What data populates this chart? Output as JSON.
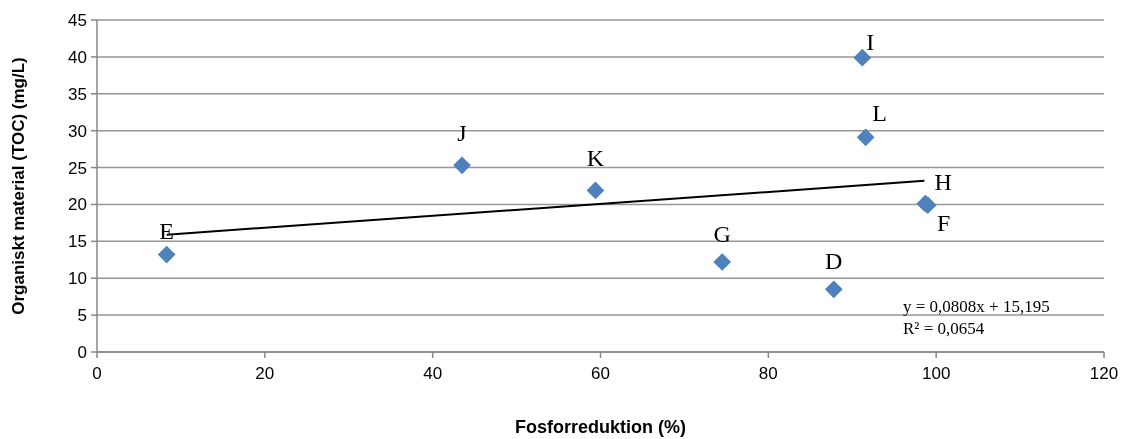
{
  "chart_data": {
    "type": "scatter",
    "xlabel": "Fosforreduktion (%)",
    "ylabel": "Organiskt material (TOC) (mg/L)",
    "xlim": [
      0,
      120
    ],
    "xticks": [
      0,
      20,
      40,
      60,
      80,
      100,
      120
    ],
    "ylim": [
      0,
      45
    ],
    "yticks": [
      0,
      5,
      10,
      15,
      20,
      25,
      30,
      35,
      40,
      45
    ],
    "grid": "y",
    "marker": "diamond",
    "series": [
      {
        "color": "#4f81bd",
        "x": [
          8.3,
          43.5,
          59.4,
          74.5,
          87.8,
          91.2,
          91.6,
          98.7,
          99.0
        ],
        "values": [
          13.2,
          25.3,
          21.9,
          12.2,
          8.5,
          39.9,
          29.1,
          20.1,
          19.9
        ]
      },
      {
        "type": "line",
        "color": "#000000",
        "marker": "none",
        "x": [
          8.3,
          98.6
        ],
        "values": [
          15.9,
          23.2
        ]
      }
    ],
    "annotations": [
      {
        "text": "E",
        "x": 8.3,
        "y": 13.2
      },
      {
        "text": "J",
        "x": 43.5,
        "y": 25.3
      },
      {
        "text": "K",
        "x": 59.4,
        "y": 21.9
      },
      {
        "text": "G",
        "x": 74.5,
        "y": 12.2
      },
      {
        "text": "D",
        "x": 87.8,
        "y": 8.5
      },
      {
        "text": "I",
        "x": 91.2,
        "y": 39.9
      },
      {
        "text": "L",
        "x": 91.6,
        "y": 29.1
      },
      {
        "text": "H",
        "x": 98.7,
        "y": 20.1
      },
      {
        "text": "F",
        "x": 99.0,
        "y": 19.9
      },
      "y = 0,0808x + 15,195",
      "R² = 0,0654"
    ]
  }
}
